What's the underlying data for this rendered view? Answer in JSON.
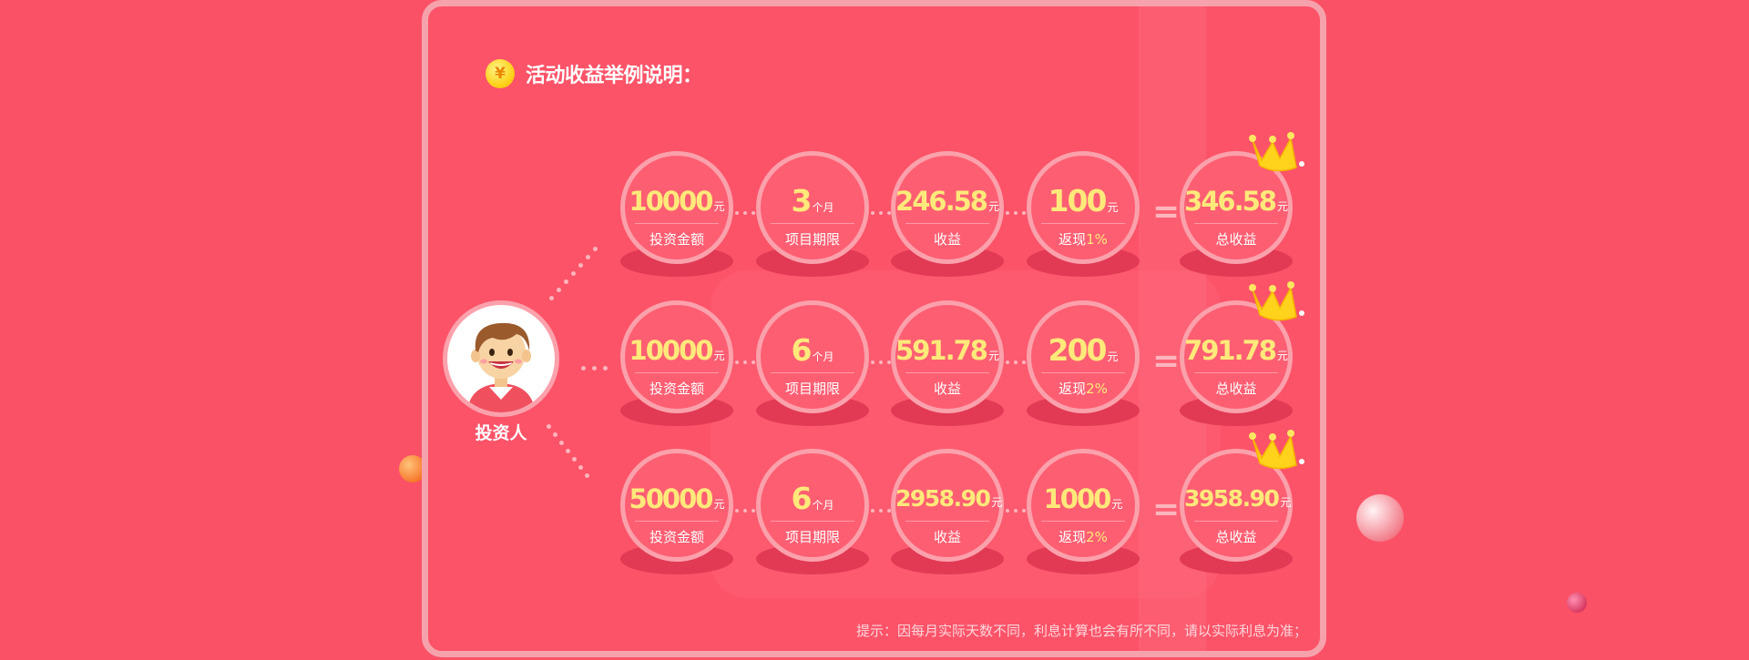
{
  "title": "活动收益举例说明：",
  "coin_symbol": "¥",
  "investor_label": "投资人",
  "tip": "提示：因每月实际天数不同，利息计算也会有所不同，请以实际利息为准；",
  "colors": {
    "background": "#fb5166",
    "value": "#ffe97a",
    "border": "#fba1ac"
  },
  "icons": [
    "coin-icon",
    "investor-avatar",
    "crown-icon"
  ],
  "equals": "=",
  "rows": [
    {
      "amount": {
        "value": "10000",
        "unit": "元",
        "label": "投资金额"
      },
      "term": {
        "value": "3",
        "unit": "个月",
        "label": "项目期限"
      },
      "income": {
        "value": "246.58",
        "unit": "元",
        "label": "收益"
      },
      "cashback": {
        "value": "100",
        "unit": "元",
        "label_prefix": "返现",
        "label_pct": "1%"
      },
      "total": {
        "value": "346.58",
        "unit": "元",
        "label": "总收益"
      }
    },
    {
      "amount": {
        "value": "10000",
        "unit": "元",
        "label": "投资金额"
      },
      "term": {
        "value": "6",
        "unit": "个月",
        "label": "项目期限"
      },
      "income": {
        "value": "591.78",
        "unit": "元",
        "label": "收益"
      },
      "cashback": {
        "value": "200",
        "unit": "元",
        "label_prefix": "返现",
        "label_pct": "2%"
      },
      "total": {
        "value": "791.78",
        "unit": "元",
        "label": "总收益"
      }
    },
    {
      "amount": {
        "value": "50000",
        "unit": "元",
        "label": "投资金额"
      },
      "term": {
        "value": "6",
        "unit": "个月",
        "label": "项目期限"
      },
      "income": {
        "value": "2958.90",
        "unit": "元",
        "label": "收益"
      },
      "cashback": {
        "value": "1000",
        "unit": "元",
        "label_prefix": "返现",
        "label_pct": "2%"
      },
      "total": {
        "value": "3958.90",
        "unit": "元",
        "label": "总收益"
      }
    }
  ]
}
